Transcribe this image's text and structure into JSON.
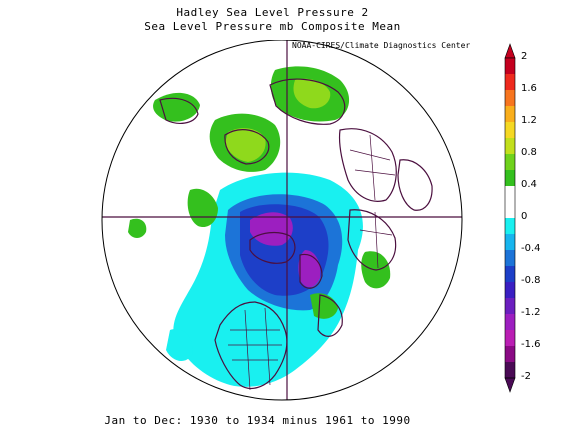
{
  "title_line1": "Hadley Sea Level Pressure 2",
  "title_line2": "Sea Level Pressure mb Composite Mean",
  "credit": "NOAA-CIRES/Climate Diagnostics Center",
  "footer": "Jan to Dec: 1930 to 1934 minus 1961 to 1990",
  "colorbar": {
    "ticks": [
      "2",
      "1.6",
      "1.2",
      "0.8",
      "0.4",
      "0",
      "-0.4",
      "-0.8",
      "-1.2",
      "-1.6",
      "-2"
    ],
    "colors": [
      "#c4001f",
      "#ee2a1e",
      "#f7751f",
      "#f9ae1c",
      "#f5d823",
      "#c2df1c",
      "#6fd21c",
      "#34c01e",
      "#ffffff",
      "#ffffff",
      "#19f0f0",
      "#17b5ee",
      "#1c74d8",
      "#1d3fc8",
      "#3a1fc2",
      "#6b1fbf",
      "#9c1fc0",
      "#ba1eb3",
      "#8a0a84",
      "#4a0a55"
    ]
  },
  "colors": {
    "land": "#4b0f3f",
    "positive_green": "#34c01e",
    "light_green": "#8fd91c",
    "cyan": "#19f0f0",
    "blue": "#1c74d8",
    "purple": "#9c1fc0"
  }
}
